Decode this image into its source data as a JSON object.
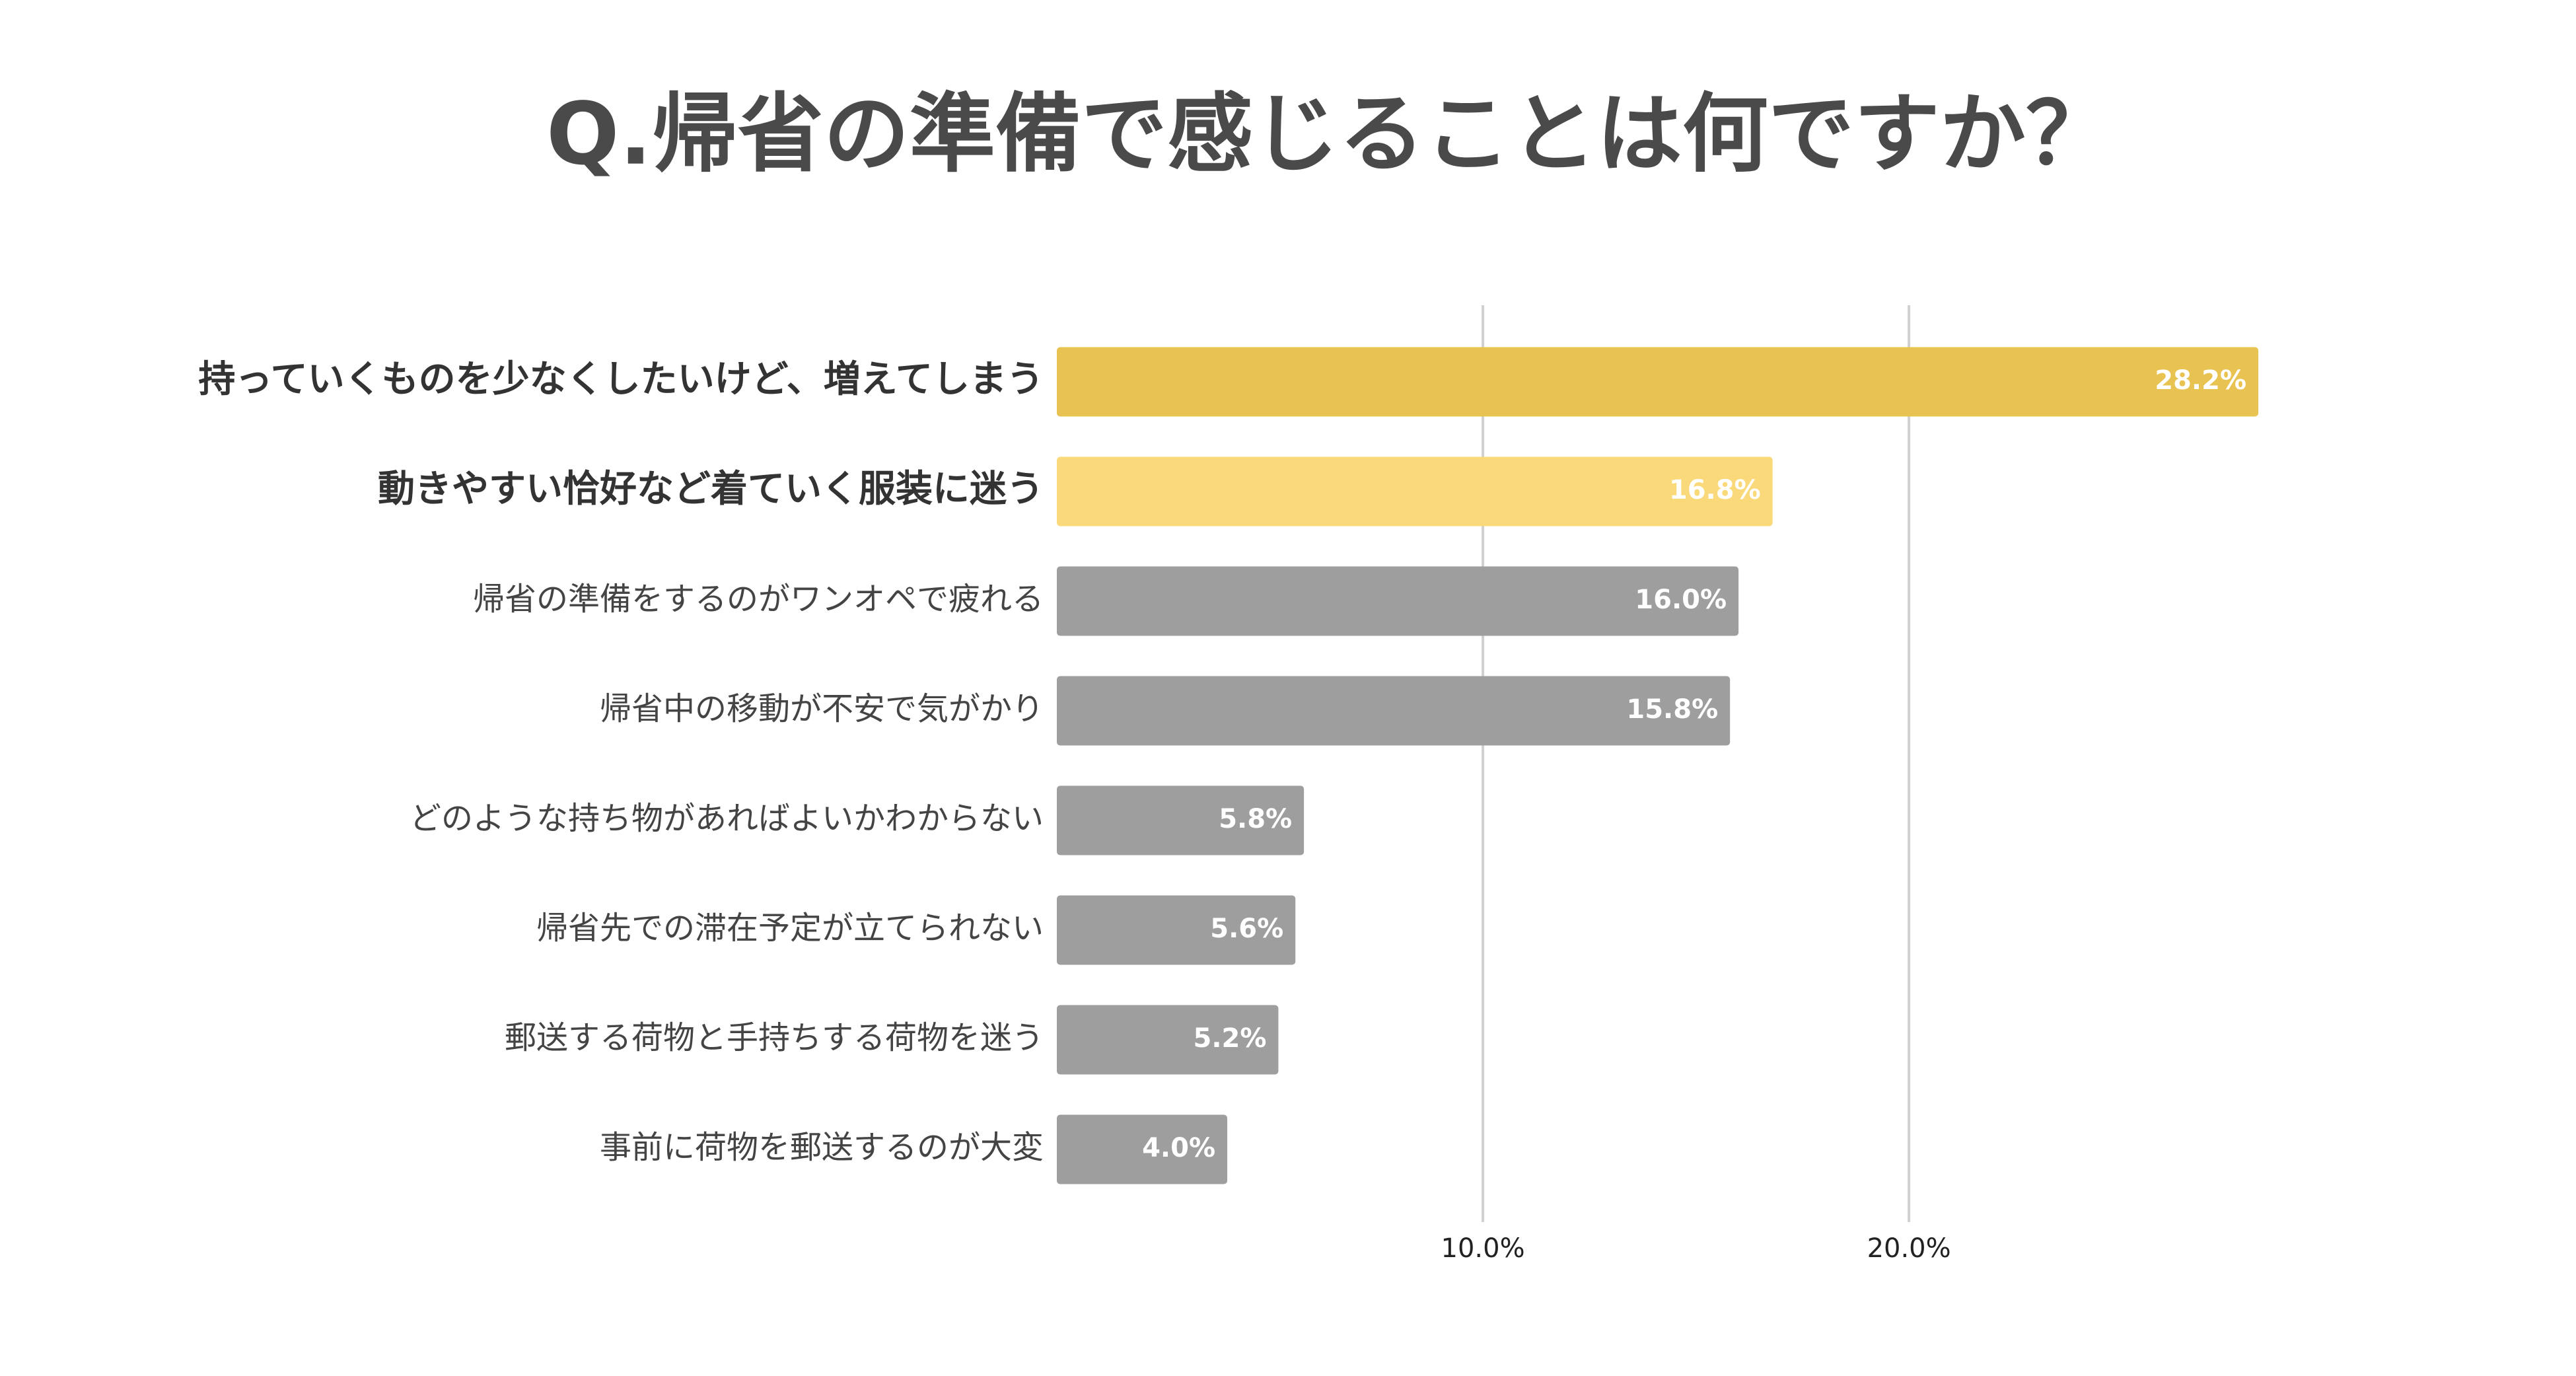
{
  "chart_data": {
    "type": "barh",
    "title": "Q.帰省の準備で感じることは何ですか？",
    "categories": [
      "持っていくものを少なくしたいけど、増えてしまう",
      "動きやすい恰好など着ていく服装に迷う",
      "帰省の準備をするのがワンオペで疲れる",
      "帰省中の移動が不安で気がかり",
      "どのような持ち物があればよいかわからない",
      "帰省先での滞在予定が立てられない",
      "郵送する荷物と手持ちする荷物を迷う",
      "事前に荷物を郵送するのが大変"
    ],
    "values": [
      28.2,
      16.8,
      16.0,
      15.8,
      5.8,
      5.6,
      5.2,
      4.0
    ],
    "value_labels": [
      "28.2%",
      "16.8%",
      "16.0%",
      "15.8%",
      "5.8%",
      "5.6%",
      "5.2%",
      "4.0%"
    ],
    "colors": [
      "#e8c352",
      "#f9d97a",
      "#9e9e9e",
      "#9e9e9e",
      "#9e9e9e",
      "#9e9e9e",
      "#9e9e9e",
      "#9e9e9e"
    ],
    "xlim": [
      0,
      29.3
    ],
    "xticks": [
      {
        "value": 10,
        "label": "10.0%"
      },
      {
        "value": 20,
        "label": "20.0%"
      }
    ],
    "grid": true
  }
}
